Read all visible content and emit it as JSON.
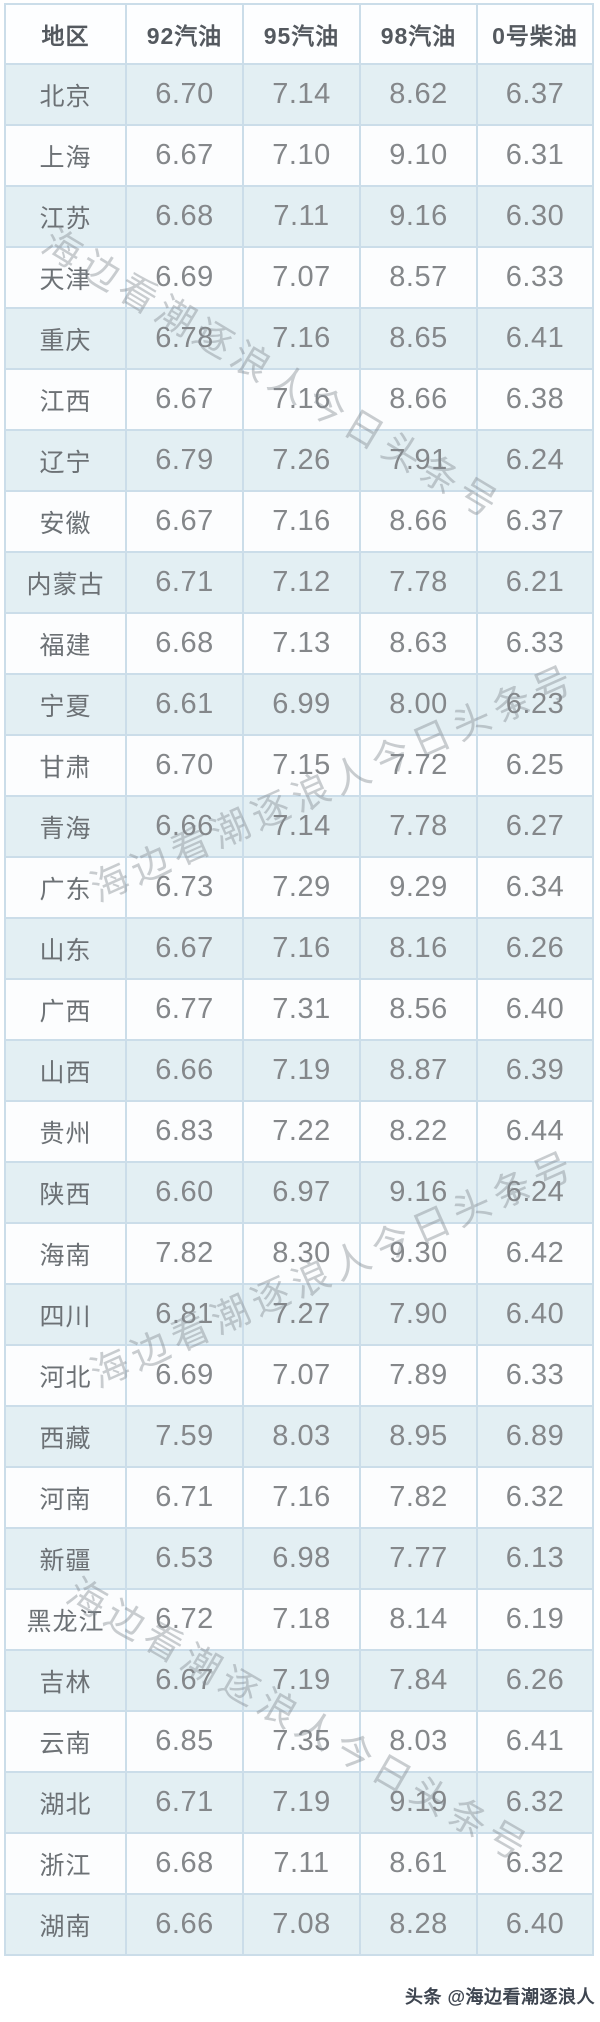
{
  "chart_data": {
    "type": "table",
    "columns": [
      "地区",
      "92汽油",
      "95汽油",
      "98汽油",
      "0号柴油"
    ],
    "rows": [
      [
        "北京",
        "6.70",
        "7.14",
        "8.62",
        "6.37"
      ],
      [
        "上海",
        "6.67",
        "7.10",
        "9.10",
        "6.31"
      ],
      [
        "江苏",
        "6.68",
        "7.11",
        "9.16",
        "6.30"
      ],
      [
        "天津",
        "6.69",
        "7.07",
        "8.57",
        "6.33"
      ],
      [
        "重庆",
        "6.78",
        "7.16",
        "8.65",
        "6.41"
      ],
      [
        "江西",
        "6.67",
        "7.16",
        "8.66",
        "6.38"
      ],
      [
        "辽宁",
        "6.79",
        "7.26",
        "7.91",
        "6.24"
      ],
      [
        "安徽",
        "6.67",
        "7.16",
        "8.66",
        "6.37"
      ],
      [
        "内蒙古",
        "6.71",
        "7.12",
        "7.78",
        "6.21"
      ],
      [
        "福建",
        "6.68",
        "7.13",
        "8.63",
        "6.33"
      ],
      [
        "宁夏",
        "6.61",
        "6.99",
        "8.00",
        "6.23"
      ],
      [
        "甘肃",
        "6.70",
        "7.15",
        "7.72",
        "6.25"
      ],
      [
        "青海",
        "6.66",
        "7.14",
        "7.78",
        "6.27"
      ],
      [
        "广东",
        "6.73",
        "7.29",
        "9.29",
        "6.34"
      ],
      [
        "山东",
        "6.67",
        "7.16",
        "8.16",
        "6.26"
      ],
      [
        "广西",
        "6.77",
        "7.31",
        "8.56",
        "6.40"
      ],
      [
        "山西",
        "6.66",
        "7.19",
        "8.87",
        "6.39"
      ],
      [
        "贵州",
        "6.83",
        "7.22",
        "8.22",
        "6.44"
      ],
      [
        "陕西",
        "6.60",
        "6.97",
        "9.16",
        "6.24"
      ],
      [
        "海南",
        "7.82",
        "8.30",
        "9.30",
        "6.42"
      ],
      [
        "四川",
        "6.81",
        "7.27",
        "7.90",
        "6.40"
      ],
      [
        "河北",
        "6.69",
        "7.07",
        "7.89",
        "6.33"
      ],
      [
        "西藏",
        "7.59",
        "8.03",
        "8.95",
        "6.89"
      ],
      [
        "河南",
        "6.71",
        "7.16",
        "7.82",
        "6.32"
      ],
      [
        "新疆",
        "6.53",
        "6.98",
        "7.77",
        "6.13"
      ],
      [
        "黑龙江",
        "6.72",
        "7.18",
        "8.14",
        "6.19"
      ],
      [
        "吉林",
        "6.67",
        "7.19",
        "7.84",
        "6.26"
      ],
      [
        "云南",
        "6.85",
        "7.35",
        "8.03",
        "6.41"
      ],
      [
        "湖北",
        "6.71",
        "7.19",
        "9.19",
        "6.32"
      ],
      [
        "浙江",
        "6.68",
        "7.11",
        "8.61",
        "6.32"
      ],
      [
        "湖南",
        "6.66",
        "7.08",
        "8.28",
        "6.40"
      ]
    ],
    "layout": {
      "grid": true,
      "alternating_row_stripes": true,
      "first_stripe_row": "北京"
    }
  },
  "watermarks": {
    "diagonal_text": "海边看潮逐浪人今日头条号",
    "credit": "头条 @海边看潮逐浪人"
  },
  "colors": {
    "row_stripe_bg": "#e3eff3",
    "row_plain_bg": "#fcfdfe",
    "border": "#cbdde9",
    "header_text": "#54595f",
    "region_text": "#6c7175",
    "value_text": "#84878a",
    "watermark_text": "#80888f",
    "credit_text": "#3e4550"
  }
}
